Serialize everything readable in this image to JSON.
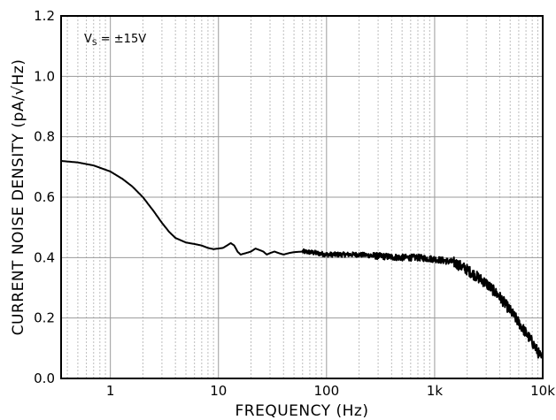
{
  "chart_data": {
    "type": "line",
    "title": "",
    "xlabel": "FREQUENCY (Hz)",
    "ylabel": "CURRENT NOISE DENSITY (pA/√Hz)",
    "xscale": "log",
    "xlim": [
      0.35,
      10000
    ],
    "ylim": [
      0,
      1.2
    ],
    "grid": true,
    "x_tick_values": [
      1,
      10,
      100,
      1000,
      10000
    ],
    "x_tick_labels": [
      "1",
      "10",
      "100",
      "1k",
      "10k"
    ],
    "y_tick_values": [
      0,
      0.2,
      0.4,
      0.6,
      0.8,
      1.0,
      1.2
    ],
    "y_tick_labels": [
      "0.0",
      "0.2",
      "0.4",
      "0.6",
      "0.8",
      "1.0",
      "1.2"
    ],
    "annotation": {
      "main": "V",
      "sub": "S",
      "rest": " = ±15V"
    },
    "series": [
      {
        "x": [
          0.35,
          0.5,
          0.7,
          1.0,
          1.3,
          1.6,
          2.0,
          2.5,
          3.0,
          3.5,
          4.0,
          5.0,
          6.0,
          7.0,
          8.0,
          9.0,
          10,
          11,
          12,
          13,
          14,
          15,
          16,
          18,
          20,
          22,
          24,
          26,
          28,
          30,
          33,
          36,
          40,
          45,
          50,
          60,
          70,
          80,
          100,
          150,
          200,
          300,
          500,
          700,
          1000,
          1500,
          2000,
          3000,
          4000,
          5000,
          6000,
          7000,
          8000,
          10000
        ],
        "y": [
          0.72,
          0.715,
          0.705,
          0.685,
          0.66,
          0.635,
          0.6,
          0.555,
          0.515,
          0.485,
          0.465,
          0.45,
          0.445,
          0.44,
          0.432,
          0.428,
          0.43,
          0.432,
          0.44,
          0.448,
          0.44,
          0.42,
          0.41,
          0.415,
          0.42,
          0.43,
          0.425,
          0.42,
          0.41,
          0.415,
          0.42,
          0.415,
          0.41,
          0.415,
          0.418,
          0.42,
          0.418,
          0.415,
          0.41,
          0.41,
          0.41,
          0.405,
          0.4,
          0.4,
          0.395,
          0.385,
          0.36,
          0.315,
          0.27,
          0.225,
          0.185,
          0.15,
          0.12,
          0.06
        ]
      }
    ]
  }
}
